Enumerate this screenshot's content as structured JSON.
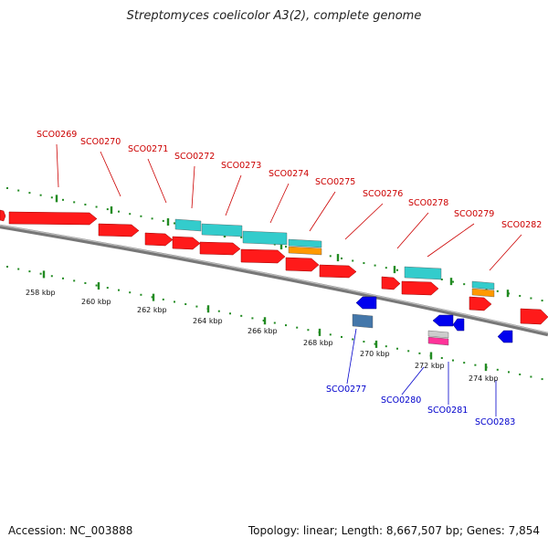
{
  "title": "Streptomyces coelicolor A3(2), complete genome",
  "footer": {
    "accession": "Accession: NC_003888",
    "stats": "Topology: linear; Length: 8,667,507 bp; Genes: 7,854"
  },
  "colors": {
    "cds_forward": "#ff1a1a",
    "cds_reverse": "#0000ee",
    "gene_feature": "#33cccc",
    "orange_feature": "#ff9900",
    "steel_feature": "#4477aa",
    "pink_feature": "#ff3399",
    "grey_feature": "#cccccc",
    "label_forward": "#cc0000",
    "label_reverse": "#0000cc",
    "tick": "#228b22",
    "backbone": "#8a8a8a"
  },
  "scale_labels": [
    "258 kbp",
    "260 kbp",
    "262 kbp",
    "264 kbp",
    "266 kbp",
    "268 kbp",
    "270 kbp",
    "272 kbp",
    "274 kbp"
  ],
  "gene_labels_top": [
    "SCO0269",
    "SCO0270",
    "SCO0271",
    "SCO0272",
    "SCO0273",
    "SCO0274",
    "SCO0275",
    "SCO0276",
    "SCO0278",
    "SCO0279",
    "SCO0282"
  ],
  "gene_labels_bottom": [
    "SCO0277",
    "SCO0280",
    "SCO0281",
    "SCO0283"
  ]
}
